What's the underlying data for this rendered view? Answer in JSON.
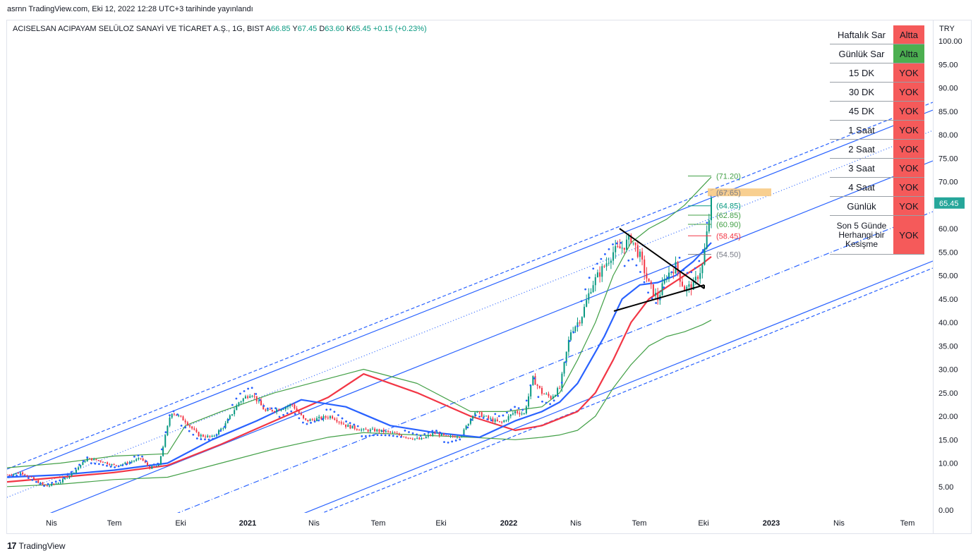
{
  "header": {
    "published": "asrnn TradingView.com, Eki 12, 2022 12:28 UTC+3 tarihinde yayınlandı"
  },
  "symbol_bar": {
    "name": "ACISELSAN ACIPAYAM SELÜLOZ SANAYİ VE TİCARET A.Ş., 1G, BIST",
    "o_label": "A",
    "o_value": "66.85",
    "h_label": "Y",
    "h_value": "67.45",
    "l_label": "D",
    "l_value": "63.60",
    "c_label": "K",
    "c_value": "65.45",
    "change": "+0.15 (+0.23%)"
  },
  "footer": {
    "logo_text": "TradingView",
    "logo_mark": "17"
  },
  "colors": {
    "up": "#089981",
    "down": "#f23645",
    "channel": "#2962ff",
    "ema_blue": "#2962ff",
    "ema_red": "#f23645",
    "band_green": "#43a047",
    "table_red": "#f55a5a",
    "table_green": "#4caf50",
    "price_tag": "#26a69a",
    "highlight": "#f7c77c"
  },
  "status_table": [
    {
      "name": "Haftalık Sar",
      "value": "Altta",
      "state": "red"
    },
    {
      "name": "Günlük Sar",
      "value": "Altta",
      "state": "green"
    },
    {
      "name": "15 DK",
      "value": "YOK",
      "state": "red"
    },
    {
      "name": "30 DK",
      "value": "YOK",
      "state": "red"
    },
    {
      "name": "45 DK",
      "value": "YOK",
      "state": "red"
    },
    {
      "name": "1 Saat",
      "value": "YOK",
      "state": "red"
    },
    {
      "name": "2 Saat",
      "value": "YOK",
      "state": "red"
    },
    {
      "name": "3 Saat",
      "value": "YOK",
      "state": "red"
    },
    {
      "name": "4 Saat",
      "value": "YOK",
      "state": "red"
    },
    {
      "name": "Günlük",
      "value": "YOK",
      "state": "red"
    },
    {
      "name": "Son 5 Günde Herhangi bir Kesişme",
      "value": "YOK",
      "state": "red"
    }
  ],
  "chart_data": {
    "type": "line",
    "currency": "TRY",
    "ylim": [
      0,
      100
    ],
    "y_ticks": [
      "100.00",
      "95.00",
      "90.00",
      "85.00",
      "80.00",
      "75.00",
      "70.00",
      "65.00",
      "60.00",
      "55.00",
      "50.00",
      "45.00",
      "40.00",
      "35.00",
      "30.00",
      "25.00",
      "20.00",
      "15.00",
      "10.00",
      "5.00",
      "0.00"
    ],
    "x_ticks": [
      "Nis",
      "Tem",
      "Eki",
      "2021",
      "Nis",
      "Tem",
      "Eki",
      "2022",
      "Nis",
      "Tem",
      "Eki",
      "2023",
      "Nis",
      "Tem"
    ],
    "last_price": "65.45",
    "levels": [
      {
        "label": "(71.20)",
        "value": 71.2,
        "color": "#43a047"
      },
      {
        "label": "(67.65)",
        "value": 67.65,
        "color": "#f7c77c"
      },
      {
        "label": "(64.85)",
        "value": 64.85,
        "color": "#089981"
      },
      {
        "label": "(62.85)",
        "value": 62.85,
        "color": "#43a047"
      },
      {
        "label": "(60.90)",
        "value": 60.9,
        "color": "#43a047"
      },
      {
        "label": "(58.45)",
        "value": 58.45,
        "color": "#f23645"
      },
      {
        "label": "(54.50)",
        "value": 54.5,
        "color": "#787b86"
      }
    ],
    "series": [
      {
        "key": "price",
        "t": [
          0,
          8,
          15,
          22,
          30,
          37,
          45,
          52,
          60,
          67,
          75,
          80,
          85,
          92,
          100,
          107,
          115,
          122,
          130,
          137,
          145,
          152,
          160,
          167,
          175,
          182,
          190,
          195,
          200,
          207,
          215,
          220,
          225,
          232,
          240,
          247,
          255,
          262,
          270,
          277,
          285,
          290,
          295,
          300,
          305,
          310,
          316,
          322,
          328,
          335,
          340,
          345,
          350,
          355,
          360,
          365,
          370,
          375,
          380,
          385,
          390,
          395
        ],
        "values": [
          7.5,
          8.0,
          6.5,
          5.0,
          6.0,
          8.0,
          11.0,
          10.5,
          9.5,
          10.0,
          11.0,
          9.0,
          9.5,
          21.0,
          19.0,
          16.0,
          15.5,
          18.0,
          23.0,
          25.0,
          21.0,
          21.5,
          22.5,
          19.0,
          19.5,
          20.0,
          18.0,
          17.5,
          17.0,
          17.0,
          16.5,
          16.0,
          15.5,
          15.0,
          16.5,
          15.5,
          16.0,
          21.0,
          19.5,
          18.5,
          21.0,
          20.5,
          28.0,
          25.0,
          24.0,
          26.0,
          38.0,
          41.0,
          48.0,
          52.0,
          55.0,
          56.0,
          58.0,
          54.0,
          48.0,
          45.0,
          50.0,
          52.0,
          47.0,
          48.0,
          52.0,
          65.45
        ]
      },
      {
        "key": "ema_blue",
        "t": [
          0,
          30,
          60,
          90,
          115,
          140,
          165,
          190,
          215,
          240,
          265,
          285,
          300,
          310,
          320,
          335,
          345,
          355,
          365,
          375,
          385,
          395
        ],
        "values": [
          7,
          7.5,
          8.5,
          10,
          15,
          19,
          23.5,
          22,
          18,
          16.5,
          15.5,
          19,
          21,
          23,
          27,
          37,
          45,
          48,
          48.5,
          50,
          53,
          57
        ]
      },
      {
        "key": "ema_red",
        "t": [
          0,
          30,
          60,
          90,
          120,
          150,
          180,
          200,
          230,
          260,
          285,
          300,
          310,
          320,
          330,
          340,
          350,
          360,
          370,
          380,
          390,
          395
        ],
        "values": [
          6,
          7,
          8,
          9.5,
          14,
          19,
          24,
          29,
          25,
          20,
          17,
          18,
          19.5,
          21,
          25,
          32,
          40,
          45,
          47.5,
          50,
          52.5,
          54
        ]
      },
      {
        "key": "band_upper",
        "t": [
          0,
          30,
          60,
          90,
          100,
          120,
          150,
          180,
          200,
          230,
          250,
          260,
          280,
          300,
          310,
          320,
          330,
          340,
          350,
          360,
          370,
          380,
          390,
          395
        ],
        "values": [
          9,
          10,
          11.5,
          12,
          18,
          21,
          25,
          28,
          30,
          27,
          23,
          21,
          21,
          22,
          25,
          32,
          40,
          50,
          57,
          60,
          62,
          65,
          69,
          71
        ]
      },
      {
        "key": "band_lower",
        "t": [
          0,
          30,
          60,
          90,
          120,
          150,
          180,
          200,
          230,
          260,
          285,
          300,
          310,
          320,
          330,
          340,
          350,
          360,
          370,
          380,
          390,
          395
        ],
        "values": [
          5,
          5.5,
          6.5,
          7,
          10,
          13,
          15.5,
          16.5,
          16,
          15.5,
          15,
          15.5,
          16,
          17,
          20,
          26,
          31,
          35,
          37,
          38,
          39.5,
          40.5
        ]
      }
    ]
  }
}
